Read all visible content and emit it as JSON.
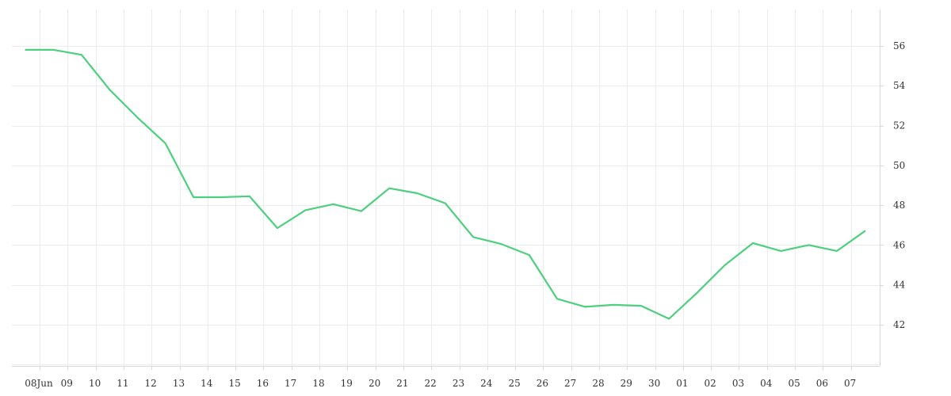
{
  "chart_data": {
    "type": "line",
    "title": "",
    "xlabel": "",
    "ylabel": "",
    "ylim": [
      40,
      57.8
    ],
    "y_ticks": [
      42,
      44,
      46,
      48,
      50,
      52,
      54,
      56
    ],
    "y_axis_position": "right",
    "grid": true,
    "legend": "none",
    "line_color": "#4cd07d",
    "x_ticks": [
      {
        "day": 8,
        "label": "08Jun"
      },
      {
        "day": 9,
        "label": "09"
      },
      {
        "day": 10,
        "label": "10"
      },
      {
        "day": 11,
        "label": "11"
      },
      {
        "day": 12,
        "label": "12"
      },
      {
        "day": 13,
        "label": "13"
      },
      {
        "day": 14,
        "label": "14"
      },
      {
        "day": 15,
        "label": "15"
      },
      {
        "day": 16,
        "label": "16"
      },
      {
        "day": 17,
        "label": "17"
      },
      {
        "day": 18,
        "label": "18"
      },
      {
        "day": 19,
        "label": "19"
      },
      {
        "day": 20,
        "label": "20"
      },
      {
        "day": 21,
        "label": "21"
      },
      {
        "day": 22,
        "label": "22"
      },
      {
        "day": 23,
        "label": "23"
      },
      {
        "day": 24,
        "label": "24"
      },
      {
        "day": 25,
        "label": "25"
      },
      {
        "day": 26,
        "label": "26"
      },
      {
        "day": 27,
        "label": "27"
      },
      {
        "day": 28,
        "label": "28"
      },
      {
        "day": 29,
        "label": "29"
      },
      {
        "day": 30,
        "label": "30"
      },
      {
        "day": 31,
        "label": "01"
      },
      {
        "day": 32,
        "label": "02"
      },
      {
        "day": 33,
        "label": "03"
      },
      {
        "day": 34,
        "label": "04"
      },
      {
        "day": 35,
        "label": "05"
      },
      {
        "day": 36,
        "label": "06"
      },
      {
        "day": 37,
        "label": "07"
      }
    ],
    "x": [
      7.5,
      8.5,
      9.5,
      10.5,
      11.5,
      12.5,
      13.5,
      14.5,
      15.5,
      16.5,
      17.5,
      18.5,
      19.5,
      20.5,
      21.5,
      22.5,
      23.5,
      24.5,
      25.5,
      26.5,
      27.5,
      28.5,
      29.5,
      30.5,
      31.5,
      32.5,
      33.5,
      34.5,
      35.5,
      36.5,
      37.5
    ],
    "values": [
      55.8,
      55.8,
      55.55,
      53.8,
      52.4,
      51.1,
      48.4,
      48.4,
      48.45,
      46.85,
      47.75,
      48.05,
      47.7,
      48.85,
      48.6,
      48.1,
      46.4,
      46.05,
      45.5,
      43.3,
      42.9,
      43.0,
      42.95,
      42.3,
      43.6,
      45.0,
      46.1,
      45.7,
      46.0,
      45.7,
      46.7
    ]
  }
}
